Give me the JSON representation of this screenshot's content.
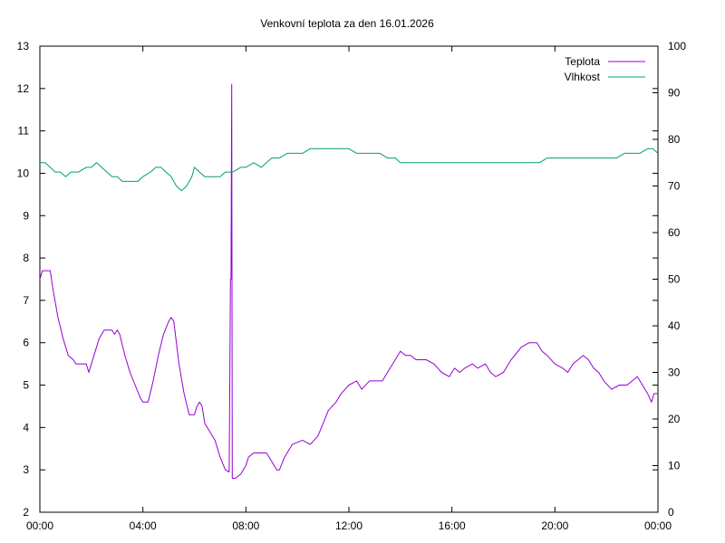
{
  "chart_data": {
    "type": "line",
    "title": "Venkovní teplota za den 16.01.2026",
    "x_ticks": [
      "00:00",
      "04:00",
      "08:00",
      "12:00",
      "16:00",
      "20:00",
      "00:00"
    ],
    "x_range_hours": [
      0,
      24
    ],
    "y_left": {
      "range": [
        2,
        13
      ],
      "ticks": [
        "2",
        "3",
        "4",
        "5",
        "6",
        "7",
        "8",
        "9",
        "10",
        "11",
        "12",
        "13"
      ]
    },
    "y_right": {
      "range": [
        0,
        100
      ],
      "ticks": [
        "0",
        "10",
        "20",
        "30",
        "40",
        "50",
        "60",
        "70",
        "80",
        "90",
        "100"
      ]
    },
    "grid": false,
    "legend_position": "top-right",
    "series": [
      {
        "name": "Teplota",
        "axis": "left",
        "color": "#9400d3",
        "points": [
          [
            0,
            7.5
          ],
          [
            0.1,
            7.7
          ],
          [
            0.4,
            7.7
          ],
          [
            0.5,
            7.3
          ],
          [
            0.7,
            6.6
          ],
          [
            0.9,
            6.1
          ],
          [
            1.1,
            5.7
          ],
          [
            1.3,
            5.6
          ],
          [
            1.4,
            5.5
          ],
          [
            1.8,
            5.5
          ],
          [
            1.9,
            5.3
          ],
          [
            2.1,
            5.7
          ],
          [
            2.3,
            6.1
          ],
          [
            2.5,
            6.3
          ],
          [
            2.8,
            6.3
          ],
          [
            2.9,
            6.2
          ],
          [
            3.0,
            6.3
          ],
          [
            3.1,
            6.2
          ],
          [
            3.3,
            5.7
          ],
          [
            3.5,
            5.3
          ],
          [
            3.7,
            5.0
          ],
          [
            3.9,
            4.7
          ],
          [
            4.0,
            4.6
          ],
          [
            4.2,
            4.6
          ],
          [
            4.4,
            5.1
          ],
          [
            4.6,
            5.7
          ],
          [
            4.8,
            6.2
          ],
          [
            5.0,
            6.5
          ],
          [
            5.1,
            6.6
          ],
          [
            5.2,
            6.5
          ],
          [
            5.4,
            5.5
          ],
          [
            5.6,
            4.8
          ],
          [
            5.8,
            4.3
          ],
          [
            6.0,
            4.3
          ],
          [
            6.1,
            4.5
          ],
          [
            6.2,
            4.6
          ],
          [
            6.3,
            4.5
          ],
          [
            6.4,
            4.1
          ],
          [
            6.6,
            3.9
          ],
          [
            6.8,
            3.7
          ],
          [
            7.0,
            3.3
          ],
          [
            7.2,
            3.0
          ],
          [
            7.35,
            2.95
          ],
          [
            7.4,
            7.5
          ],
          [
            7.42,
            7.5
          ],
          [
            7.45,
            12.1
          ],
          [
            7.47,
            2.8
          ],
          [
            7.6,
            2.8
          ],
          [
            7.8,
            2.9
          ],
          [
            8.0,
            3.1
          ],
          [
            8.1,
            3.3
          ],
          [
            8.3,
            3.4
          ],
          [
            8.8,
            3.4
          ],
          [
            9.0,
            3.2
          ],
          [
            9.2,
            3.0
          ],
          [
            9.3,
            3.0
          ],
          [
            9.5,
            3.3
          ],
          [
            9.8,
            3.6
          ],
          [
            10.2,
            3.7
          ],
          [
            10.5,
            3.6
          ],
          [
            10.8,
            3.8
          ],
          [
            11.0,
            4.1
          ],
          [
            11.2,
            4.4
          ],
          [
            11.5,
            4.6
          ],
          [
            11.7,
            4.8
          ],
          [
            12.0,
            5.0
          ],
          [
            12.3,
            5.1
          ],
          [
            12.5,
            4.9
          ],
          [
            12.8,
            5.1
          ],
          [
            13.3,
            5.1
          ],
          [
            13.6,
            5.4
          ],
          [
            14.0,
            5.8
          ],
          [
            14.2,
            5.7
          ],
          [
            14.4,
            5.7
          ],
          [
            14.6,
            5.6
          ],
          [
            15.0,
            5.6
          ],
          [
            15.3,
            5.5
          ],
          [
            15.6,
            5.3
          ],
          [
            15.9,
            5.2
          ],
          [
            16.1,
            5.4
          ],
          [
            16.3,
            5.3
          ],
          [
            16.5,
            5.4
          ],
          [
            16.8,
            5.5
          ],
          [
            17.0,
            5.4
          ],
          [
            17.3,
            5.5
          ],
          [
            17.5,
            5.3
          ],
          [
            17.7,
            5.2
          ],
          [
            18.0,
            5.3
          ],
          [
            18.3,
            5.6
          ],
          [
            18.7,
            5.9
          ],
          [
            19.0,
            6.0
          ],
          [
            19.3,
            6.0
          ],
          [
            19.5,
            5.8
          ],
          [
            19.7,
            5.7
          ],
          [
            20.0,
            5.5
          ],
          [
            20.3,
            5.4
          ],
          [
            20.5,
            5.3
          ],
          [
            20.7,
            5.5
          ],
          [
            20.9,
            5.6
          ],
          [
            21.1,
            5.7
          ],
          [
            21.3,
            5.6
          ],
          [
            21.5,
            5.4
          ],
          [
            21.7,
            5.3
          ],
          [
            21.9,
            5.1
          ],
          [
            22.2,
            4.9
          ],
          [
            22.5,
            5.0
          ],
          [
            22.8,
            5.0
          ],
          [
            23.0,
            5.1
          ],
          [
            23.2,
            5.2
          ],
          [
            23.4,
            5.0
          ],
          [
            23.6,
            4.8
          ],
          [
            23.75,
            4.6
          ],
          [
            23.85,
            4.8
          ],
          [
            24.0,
            4.8
          ]
        ]
      },
      {
        "name": "Vlhkost",
        "axis": "right",
        "color": "#009e73",
        "points": [
          [
            0,
            75
          ],
          [
            0.2,
            75
          ],
          [
            0.4,
            74
          ],
          [
            0.6,
            73
          ],
          [
            0.8,
            73
          ],
          [
            1.0,
            72
          ],
          [
            1.2,
            73
          ],
          [
            1.5,
            73
          ],
          [
            1.8,
            74
          ],
          [
            2.0,
            74
          ],
          [
            2.2,
            75
          ],
          [
            2.4,
            74
          ],
          [
            2.6,
            73
          ],
          [
            2.8,
            72
          ],
          [
            3.0,
            72
          ],
          [
            3.2,
            71
          ],
          [
            3.4,
            71
          ],
          [
            3.6,
            71
          ],
          [
            3.8,
            71
          ],
          [
            4.0,
            72
          ],
          [
            4.3,
            73
          ],
          [
            4.5,
            74
          ],
          [
            4.7,
            74
          ],
          [
            4.9,
            73
          ],
          [
            5.1,
            72
          ],
          [
            5.3,
            70
          ],
          [
            5.5,
            69
          ],
          [
            5.7,
            70
          ],
          [
            5.9,
            72
          ],
          [
            6.0,
            74
          ],
          [
            6.2,
            73
          ],
          [
            6.4,
            72
          ],
          [
            6.6,
            72
          ],
          [
            6.8,
            72
          ],
          [
            7.0,
            72
          ],
          [
            7.2,
            73
          ],
          [
            7.5,
            73
          ],
          [
            7.8,
            74
          ],
          [
            8.0,
            74
          ],
          [
            8.3,
            75
          ],
          [
            8.6,
            74
          ],
          [
            8.8,
            75
          ],
          [
            9.0,
            76
          ],
          [
            9.3,
            76
          ],
          [
            9.6,
            77
          ],
          [
            9.9,
            77
          ],
          [
            10.2,
            77
          ],
          [
            10.5,
            78
          ],
          [
            10.8,
            78
          ],
          [
            11.1,
            78
          ],
          [
            11.4,
            78
          ],
          [
            11.7,
            78
          ],
          [
            12.0,
            78
          ],
          [
            12.3,
            77
          ],
          [
            12.6,
            77
          ],
          [
            12.9,
            77
          ],
          [
            13.2,
            77
          ],
          [
            13.5,
            76
          ],
          [
            13.8,
            76
          ],
          [
            14.0,
            75
          ],
          [
            14.3,
            75
          ],
          [
            14.6,
            75
          ],
          [
            14.9,
            75
          ],
          [
            15.2,
            75
          ],
          [
            15.5,
            75
          ],
          [
            15.8,
            75
          ],
          [
            16.1,
            75
          ],
          [
            16.4,
            75
          ],
          [
            16.7,
            75
          ],
          [
            17.0,
            75
          ],
          [
            17.3,
            75
          ],
          [
            17.6,
            75
          ],
          [
            17.9,
            75
          ],
          [
            18.2,
            75
          ],
          [
            18.5,
            75
          ],
          [
            18.8,
            75
          ],
          [
            19.1,
            75
          ],
          [
            19.4,
            75
          ],
          [
            19.7,
            76
          ],
          [
            20.0,
            76
          ],
          [
            20.3,
            76
          ],
          [
            20.6,
            76
          ],
          [
            20.9,
            76
          ],
          [
            21.2,
            76
          ],
          [
            21.5,
            76
          ],
          [
            21.8,
            76
          ],
          [
            22.1,
            76
          ],
          [
            22.4,
            76
          ],
          [
            22.7,
            77
          ],
          [
            23.0,
            77
          ],
          [
            23.3,
            77
          ],
          [
            23.6,
            78
          ],
          [
            23.8,
            78
          ],
          [
            24.0,
            77
          ]
        ]
      }
    ]
  }
}
